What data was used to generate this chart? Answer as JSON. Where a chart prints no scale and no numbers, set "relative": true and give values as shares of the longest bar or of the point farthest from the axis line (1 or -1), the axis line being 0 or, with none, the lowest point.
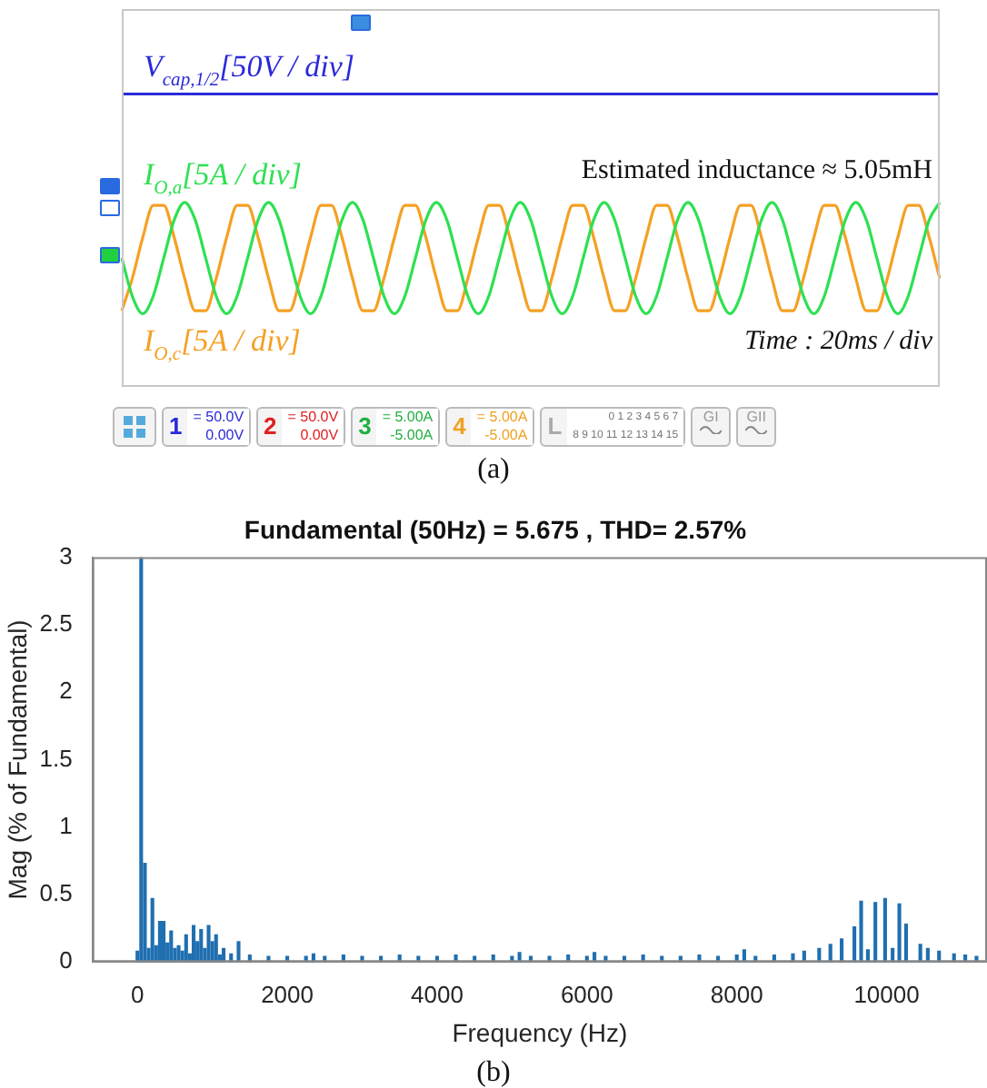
{
  "chart_data": [
    {
      "type": "line",
      "relative": true,
      "legend": false,
      "marker": "none",
      "categories": [
        null,
        null,
        null,
        null,
        null,
        null,
        null,
        null,
        null,
        null,
        null,
        null,
        null,
        null,
        null,
        null,
        null,
        null,
        null,
        null,
        null,
        null,
        null,
        null,
        null,
        null,
        null,
        null,
        null,
        null,
        null,
        null,
        null,
        null,
        null,
        null,
        null,
        null,
        null,
        null,
        null,
        null,
        null,
        null,
        null,
        null,
        null,
        null,
        null,
        null,
        null,
        null,
        null,
        null,
        null,
        null,
        null,
        null,
        null,
        null,
        null,
        null,
        null,
        null,
        null,
        null,
        null,
        null,
        null,
        null,
        null,
        null,
        null,
        null,
        null,
        null,
        null,
        null,
        null
      ],
      "series": [
        {
          "name": "V$_{cap,1/2}$[50V / div]",
          "color": "#2a2ad8",
          "values": [
            1,
            1,
            1,
            1,
            1,
            1,
            1,
            1,
            1,
            1,
            1,
            1,
            1,
            1,
            1,
            1,
            1,
            1,
            1,
            1,
            1,
            1,
            1,
            1,
            1,
            1,
            1,
            1,
            1,
            1,
            1,
            1,
            1,
            1,
            1,
            1,
            1,
            1,
            1,
            1,
            1,
            1,
            1,
            1,
            1,
            1,
            1,
            1,
            1,
            1,
            1,
            1,
            1,
            1,
            1,
            1,
            1,
            1,
            1,
            1,
            1,
            1,
            1,
            1,
            1,
            1,
            1,
            1,
            1,
            1,
            1,
            1,
            1,
            1,
            1,
            1,
            1,
            1,
            1
          ]
        },
        {
          "name": "I$_{O,a}$[5A / div]",
          "color": "#2ee052",
          "values": [
            0.44,
            0.31,
            0.25,
            0.31,
            0.44,
            0.57,
            0.63,
            0.57,
            0.44,
            0.31,
            0.25,
            0.31,
            0.44,
            0.57,
            0.63,
            0.57,
            0.44,
            0.31,
            0.25,
            0.31,
            0.44,
            0.57,
            0.63,
            0.57,
            0.44,
            0.31,
            0.25,
            0.31,
            0.44,
            0.57,
            0.63,
            0.57,
            0.44,
            0.31,
            0.25,
            0.31,
            0.44,
            0.57,
            0.63,
            0.57,
            0.44,
            0.31,
            0.25,
            0.31,
            0.44,
            0.57,
            0.63,
            0.57,
            0.44,
            0.31,
            0.25,
            0.31,
            0.44,
            0.57,
            0.63,
            0.57,
            0.44,
            0.31,
            0.25,
            0.31,
            0.44,
            0.57,
            0.63,
            0.57,
            0.44,
            0.31,
            0.25,
            0.31,
            0.44,
            0.57,
            0.63,
            0.57,
            0.44,
            0.31,
            0.25,
            0.31,
            0.44,
            0.57,
            0.63
          ]
        },
        {
          "name": "I$_{O,c}$[5A / div]",
          "color": "#f5a024",
          "values": [
            0.26,
            0.37,
            0.51,
            0.62,
            0.62,
            0.51,
            0.37,
            0.26,
            0.26,
            0.37,
            0.51,
            0.62,
            0.62,
            0.51,
            0.37,
            0.26,
            0.26,
            0.37,
            0.51,
            0.62,
            0.62,
            0.51,
            0.37,
            0.26,
            0.26,
            0.37,
            0.51,
            0.62,
            0.62,
            0.51,
            0.37,
            0.26,
            0.26,
            0.37,
            0.51,
            0.62,
            0.62,
            0.51,
            0.37,
            0.26,
            0.26,
            0.37,
            0.51,
            0.62,
            0.62,
            0.51,
            0.37,
            0.26,
            0.26,
            0.37,
            0.51,
            0.62,
            0.62,
            0.51,
            0.37,
            0.26,
            0.26,
            0.37,
            0.51,
            0.62,
            0.62,
            0.51,
            0.37,
            0.26,
            0.26,
            0.37,
            0.51,
            0.62,
            0.62,
            0.51,
            0.37,
            0.26,
            0.26,
            0.37,
            0.51,
            0.62,
            0.62,
            0.51,
            0.37
          ]
        }
      ],
      "annotations": [
        "Estimated inductance ≈ 5.05mH",
        "Time : 20ms / div",
        "1",
        "= 50.0V",
        "0.00V",
        "2",
        "= 50.0V",
        "0.00V",
        "3",
        "= 5.00A",
        "-5.00A",
        "4",
        "= 5.00A",
        "-5.00A",
        "L",
        "0 1 2 3 4 5 6 7",
        "8 9 10 11 12 13 14 15",
        "GI",
        "GII",
        "(a)"
      ]
    },
    {
      "type": "bar",
      "title": "Fundamental (50Hz) = 5.675 , THD= 2.57%",
      "xlabel": "Frequency (Hz)",
      "ylabel": "Mag (% of Fundamental)",
      "color": "#1f6fb0",
      "grid": false,
      "legend": false,
      "x": [
        0,
        50,
        100,
        150,
        200,
        250,
        300,
        350,
        400,
        450,
        500,
        550,
        600,
        650,
        700,
        750,
        800,
        850,
        900,
        950,
        1000,
        1050,
        1100,
        1150,
        1250,
        1350,
        1500,
        1750,
        2000,
        2250,
        2350,
        2500,
        2750,
        3000,
        3250,
        3500,
        3750,
        4000,
        4250,
        4500,
        4750,
        5000,
        5100,
        5250,
        5500,
        5750,
        6000,
        6100,
        6250,
        6500,
        6750,
        7000,
        7250,
        7500,
        7750,
        8000,
        8100,
        8250,
        8500,
        8750,
        8900,
        9100,
        9250,
        9400,
        9570,
        9660,
        9750,
        9850,
        9980,
        10080,
        10170,
        10260,
        10450,
        10550,
        10700,
        10900,
        11050,
        11200
      ],
      "values": [
        0.08,
        3,
        0.73,
        0.1,
        0.47,
        0.12,
        0.3,
        0.3,
        0.14,
        0.23,
        0.1,
        0.12,
        0.08,
        0.2,
        0.06,
        0.27,
        0.15,
        0.24,
        0.1,
        0.27,
        0.15,
        0.2,
        0.05,
        0.1,
        0.06,
        0.15,
        0.05,
        0.04,
        0.04,
        0.04,
        0.06,
        0.04,
        0.05,
        0.04,
        0.04,
        0.05,
        0.04,
        0.04,
        0.05,
        0.04,
        0.05,
        0.04,
        0.07,
        0.04,
        0.04,
        0.05,
        0.04,
        0.07,
        0.04,
        0.04,
        0.05,
        0.04,
        0.04,
        0.05,
        0.04,
        0.05,
        0.09,
        0.04,
        0.05,
        0.06,
        0.08,
        0.1,
        0.13,
        0.17,
        0.26,
        0.45,
        0.09,
        0.44,
        0.47,
        0.1,
        0.43,
        0.28,
        0.13,
        0.1,
        0.08,
        0.06,
        0.05,
        0.04
      ],
      "xlim": [
        -600,
        11340
      ],
      "xticks": [
        0,
        2000,
        4000,
        6000,
        8000,
        10000
      ],
      "ylim": [
        0,
        3
      ],
      "yticks": [
        0,
        0.5,
        1,
        1.5,
        2,
        2.5,
        3
      ],
      "annotations": [
        "(b)"
      ]
    }
  ]
}
